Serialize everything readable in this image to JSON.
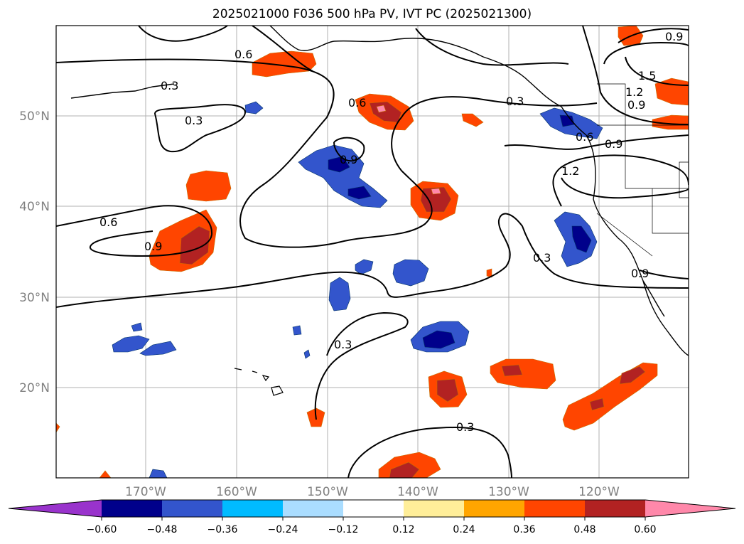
{
  "title": "2025021000 F036 500 hPa PV, IVT PC (2025021300)",
  "lat_labels": [
    "50°N",
    "40°N",
    "30°N",
    "20°N"
  ],
  "lon_labels": [
    "170°W",
    "160°W",
    "150°W",
    "140°W",
    "130°W",
    "120°W"
  ],
  "contour_labels": [
    "0.9",
    "0.3",
    "0.6",
    "0.9",
    "0.6",
    "0.3",
    "0.6",
    "0.9",
    "1.2",
    "1.5",
    "1.2",
    "0.9",
    "0.9",
    "0.6",
    "0.9",
    "0.3",
    "0.3",
    "0.3",
    "0.3"
  ],
  "colorbar": {
    "colors": [
      "#9933cc",
      "#00008b",
      "#3355cc",
      "#00bbff",
      "#aaddff",
      "#ffffff",
      "#ffee99",
      "#ffa500",
      "#ff4500",
      "#b22222",
      "#ff88aa"
    ],
    "ticks": [
      "−0.60",
      "−0.48",
      "−0.36",
      "−0.24",
      "−0.12",
      "0.12",
      "0.24",
      "0.36",
      "0.48",
      "0.60"
    ]
  }
}
